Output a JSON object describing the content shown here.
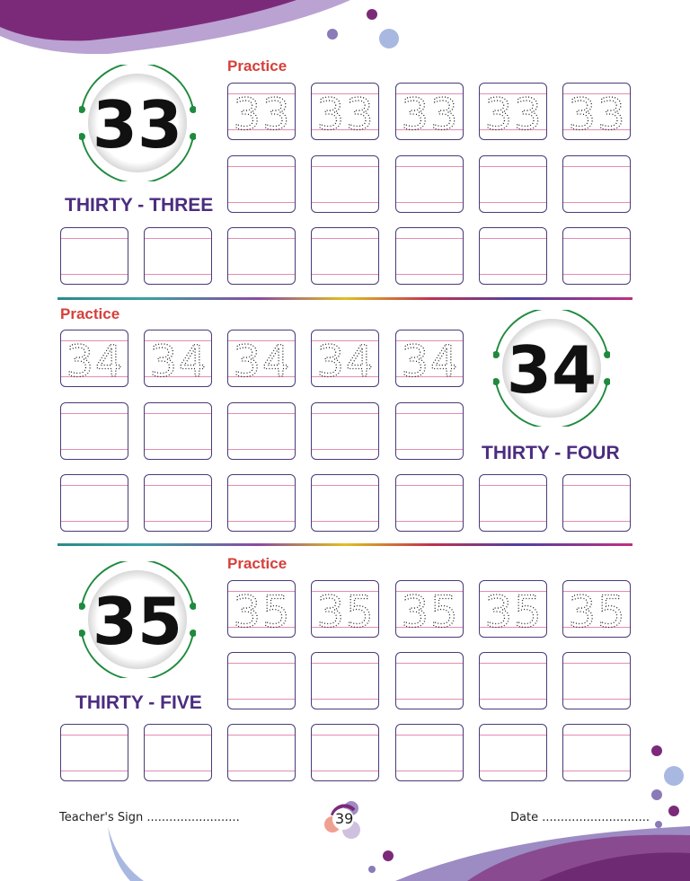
{
  "sections": [
    {
      "number": "33",
      "word": "THIRTY - THREE",
      "practice": "Practice"
    },
    {
      "number": "34",
      "word": "THIRTY - FOUR",
      "practice": "Practice"
    },
    {
      "number": "35",
      "word": "THIRTY - FIVE",
      "practice": "Practice"
    }
  ],
  "footer": {
    "teacher_sign": "Teacher's Sign .........................",
    "page_number": "39",
    "date": "Date ............................."
  },
  "colors": {
    "title": "#4b2c7f",
    "practice": "#d6403a",
    "box_border": "#4a3a7a",
    "guide_line": "#e58cb4",
    "arc": "#1f8a3e",
    "decor": "#7b2a7a"
  }
}
